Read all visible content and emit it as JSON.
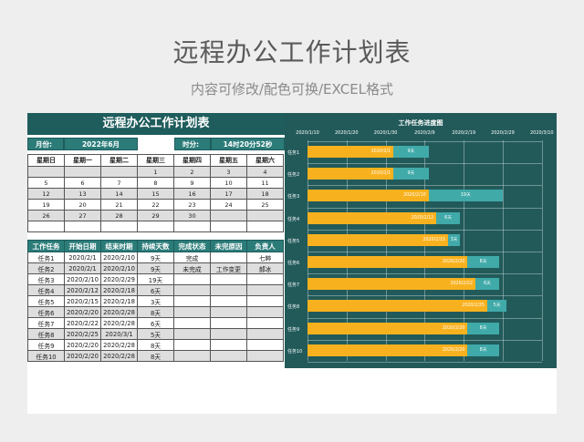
{
  "hero": {
    "title": "远程办公工作计划表",
    "subtitle": "内容可修改/配色可换/EXCEL格式"
  },
  "sheet": {
    "title": "远程办公工作计划表",
    "month_label": "月份:",
    "month_value": "2022年6月",
    "time_label": "时分:",
    "time_value": "14时20分52秒",
    "weekdays": [
      "星期日",
      "星期一",
      "星期二",
      "星期三",
      "星期四",
      "星期五",
      "星期六"
    ],
    "calendar": [
      [
        "",
        "",
        "",
        "1",
        "2",
        "3",
        "4"
      ],
      [
        "5",
        "6",
        "7",
        "8",
        "9",
        "10",
        "11"
      ],
      [
        "12",
        "13",
        "14",
        "15",
        "16",
        "17",
        "18"
      ],
      [
        "19",
        "20",
        "21",
        "22",
        "23",
        "24",
        "25"
      ],
      [
        "26",
        "27",
        "28",
        "29",
        "30",
        "",
        ""
      ],
      [
        "",
        "",
        "",
        "",
        "",
        "",
        ""
      ]
    ],
    "highlight_day": "27",
    "task_headers": [
      "工作任务",
      "开始日期",
      "结束时期",
      "持续天数",
      "完成状态",
      "未完原因",
      "负责人"
    ],
    "tasks": [
      [
        "任务1",
        "2020/2/1",
        "2020/2/10",
        "9天",
        "完成",
        "",
        "七粹"
      ],
      [
        "任务2",
        "2020/2/1",
        "2020/2/10",
        "9天",
        "未完成",
        "工作变更",
        "郝冰"
      ],
      [
        "任务3",
        "2020/2/10",
        "2020/2/29",
        "19天",
        "",
        "",
        ""
      ],
      [
        "任务4",
        "2020/2/12",
        "2020/2/18",
        "6天",
        "",
        "",
        ""
      ],
      [
        "任务5",
        "2020/2/15",
        "2020/2/18",
        "3天",
        "",
        "",
        ""
      ],
      [
        "任务6",
        "2020/2/20",
        "2020/2/28",
        "8天",
        "",
        "",
        ""
      ],
      [
        "任务7",
        "2020/2/22",
        "2020/2/28",
        "6天",
        "",
        "",
        ""
      ],
      [
        "任务8",
        "2020/2/25",
        "2020/3/1",
        "5天",
        "",
        "",
        ""
      ],
      [
        "任务9",
        "2020/2/20",
        "2020/2/28",
        "8天",
        "",
        "",
        ""
      ],
      [
        "任务10",
        "2020/2/20",
        "2020/2/28",
        "8天",
        "",
        "",
        ""
      ]
    ]
  },
  "colors": {
    "header": "#1f5c5c",
    "accent": "#2b7c79",
    "bar_start": "#f8b11e",
    "bar_duration": "#40aaa9",
    "highlight": "#f6b800"
  },
  "chart_data": {
    "type": "bar",
    "title": "工作任务进度图",
    "orientation": "horizontal-stacked-gantt",
    "x_ticks": [
      "2020/1/10",
      "2020/1/20",
      "2020/1/30",
      "2020/2/9",
      "2020/2/19",
      "2020/2/29",
      "2020/3/10"
    ],
    "categories": [
      "任务1",
      "任务2",
      "任务3",
      "任务4",
      "任务5",
      "任务6",
      "任务7",
      "任务8",
      "任务9",
      "任务10"
    ],
    "series": [
      {
        "name": "开始日期",
        "values": [
          "2020/2/1",
          "2020/2/1",
          "2020/2/10",
          "2020/2/12",
          "2020/2/15",
          "2020/2/20",
          "2020/2/22",
          "2020/2/25",
          "2020/2/20",
          "2020/2/20"
        ],
        "offset_days": [
          22,
          22,
          31,
          33,
          36,
          41,
          43,
          46,
          41,
          41
        ]
      },
      {
        "name": "持续天数",
        "values": [
          9,
          9,
          19,
          6,
          3,
          8,
          6,
          5,
          8,
          8
        ],
        "labels": [
          "9天",
          "9天",
          "19天",
          "6天",
          "3天",
          "8天",
          "6天",
          "5天",
          "8天",
          "8天"
        ]
      }
    ],
    "xlim": [
      "2020/1/10",
      "2020/3/10"
    ],
    "grid": true
  }
}
